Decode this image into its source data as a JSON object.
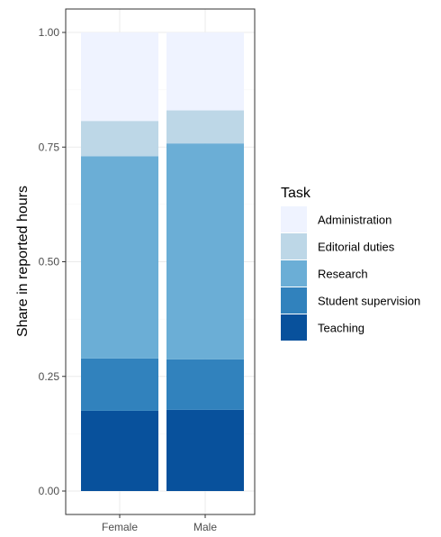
{
  "chart_data": {
    "type": "bar",
    "stacked": true,
    "categories": [
      "Female",
      "Male"
    ],
    "series": [
      {
        "name": "Teaching",
        "color": "#08519c",
        "values": [
          0.175,
          0.177
        ]
      },
      {
        "name": "Student supervision",
        "color": "#3182bd",
        "values": [
          0.114,
          0.11
        ]
      },
      {
        "name": "Research",
        "color": "#6baed6",
        "values": [
          0.441,
          0.471
        ]
      },
      {
        "name": "Editorial duties",
        "color": "#bdd7e7",
        "values": [
          0.077,
          0.072
        ]
      },
      {
        "name": "Administration",
        "color": "#eff3ff",
        "values": [
          0.193,
          0.17
        ]
      }
    ],
    "ylabel": "Share in reported hours",
    "xlabel": "",
    "ylim": [
      0,
      1
    ],
    "yticks": [
      "0.00",
      "0.25",
      "0.50",
      "0.75",
      "1.00"
    ],
    "legend_title": "Task",
    "legend_order": [
      "Administration",
      "Editorial duties",
      "Research",
      "Student supervision",
      "Teaching"
    ],
    "legend_position": "right",
    "grid": true
  }
}
